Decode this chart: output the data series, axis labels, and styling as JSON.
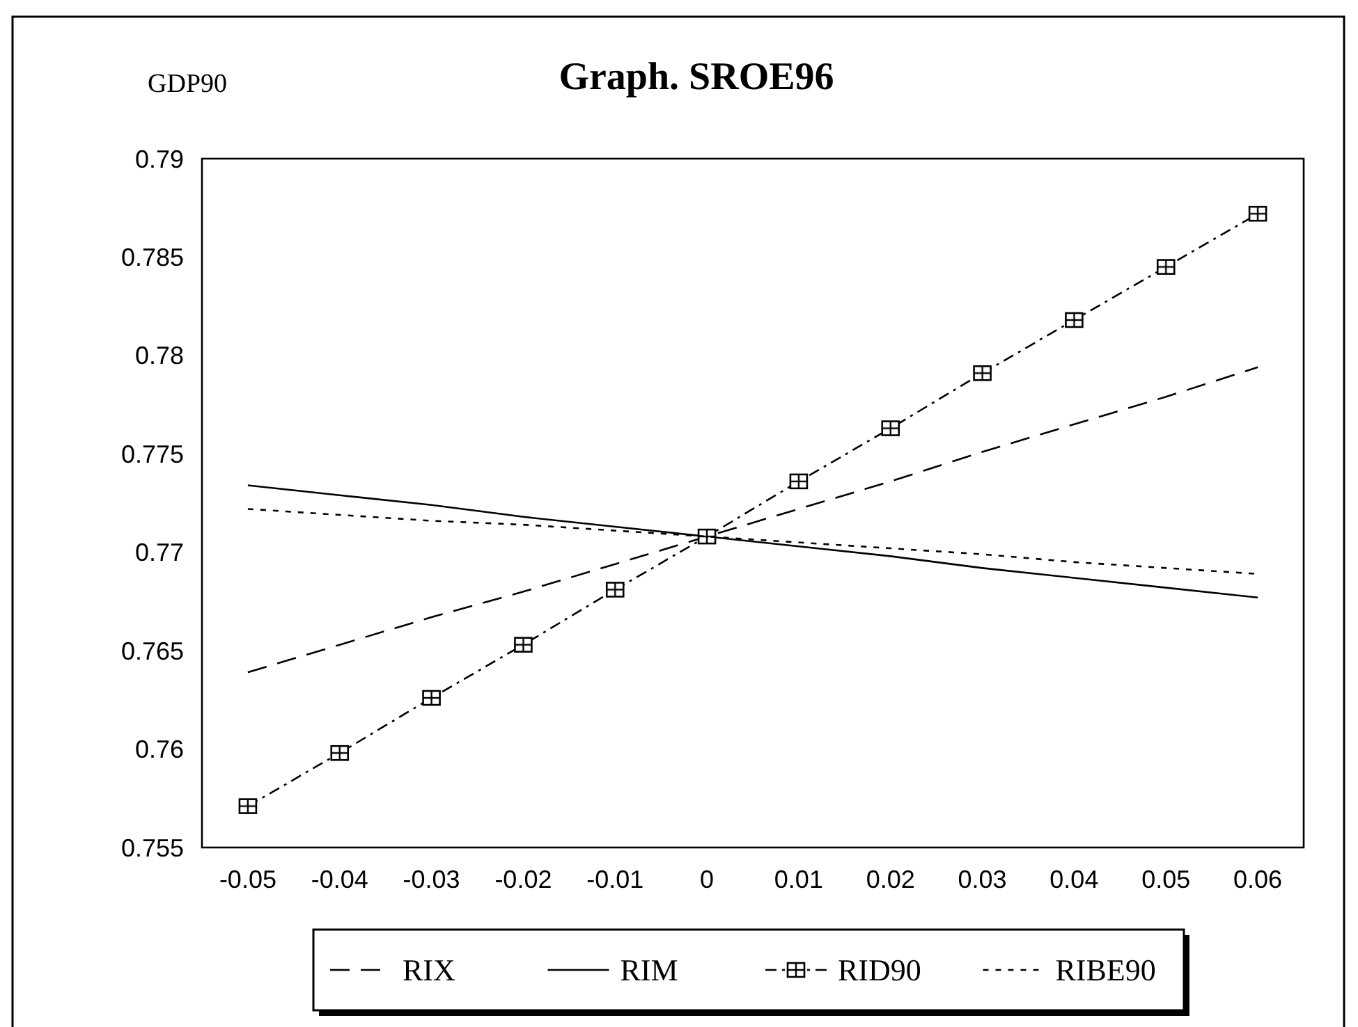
{
  "chart_data": {
    "type": "line",
    "title": "Graph. SROE96",
    "ylabel": "GDP90",
    "categories": [
      "-0.05",
      "-0.04",
      "-0.03",
      "-0.02",
      "-0.01",
      "0",
      "0.01",
      "0.02",
      "0.03",
      "0.04",
      "0.05",
      "0.06"
    ],
    "series": [
      {
        "name": "RIX",
        "color": "#000000",
        "line_style": "dashed",
        "marker": "none",
        "values": [
          0.7639,
          0.7653,
          0.7667,
          0.768,
          0.7694,
          0.7708,
          0.7722,
          0.7736,
          0.7751,
          0.7765,
          0.7779,
          0.7794
        ]
      },
      {
        "name": "RIM",
        "color": "#000000",
        "line_style": "solid",
        "marker": "none",
        "values": [
          0.7734,
          0.7729,
          0.7724,
          0.7718,
          0.7713,
          0.7708,
          0.7703,
          0.7698,
          0.7692,
          0.7687,
          0.7682,
          0.7677
        ]
      },
      {
        "name": "RID90",
        "color": "#000000",
        "line_style": "dashdot",
        "marker": "square",
        "values": [
          0.7571,
          0.7598,
          0.7626,
          0.7653,
          0.7681,
          0.7708,
          0.7736,
          0.7763,
          0.7791,
          0.7818,
          0.7845,
          0.7872
        ]
      },
      {
        "name": "RIBE90",
        "color": "#000000",
        "line_style": "dotted",
        "marker": "none",
        "values": [
          0.7722,
          0.7719,
          0.7716,
          0.7714,
          0.7711,
          0.7708,
          0.7705,
          0.7702,
          0.7699,
          0.7695,
          0.7692,
          0.7689
        ]
      }
    ],
    "ylim": [
      0.755,
      0.79
    ],
    "yticks": [
      0.755,
      0.76,
      0.765,
      0.77,
      0.775,
      0.78,
      0.785,
      0.79
    ],
    "grid": false,
    "legend": "bottom"
  }
}
